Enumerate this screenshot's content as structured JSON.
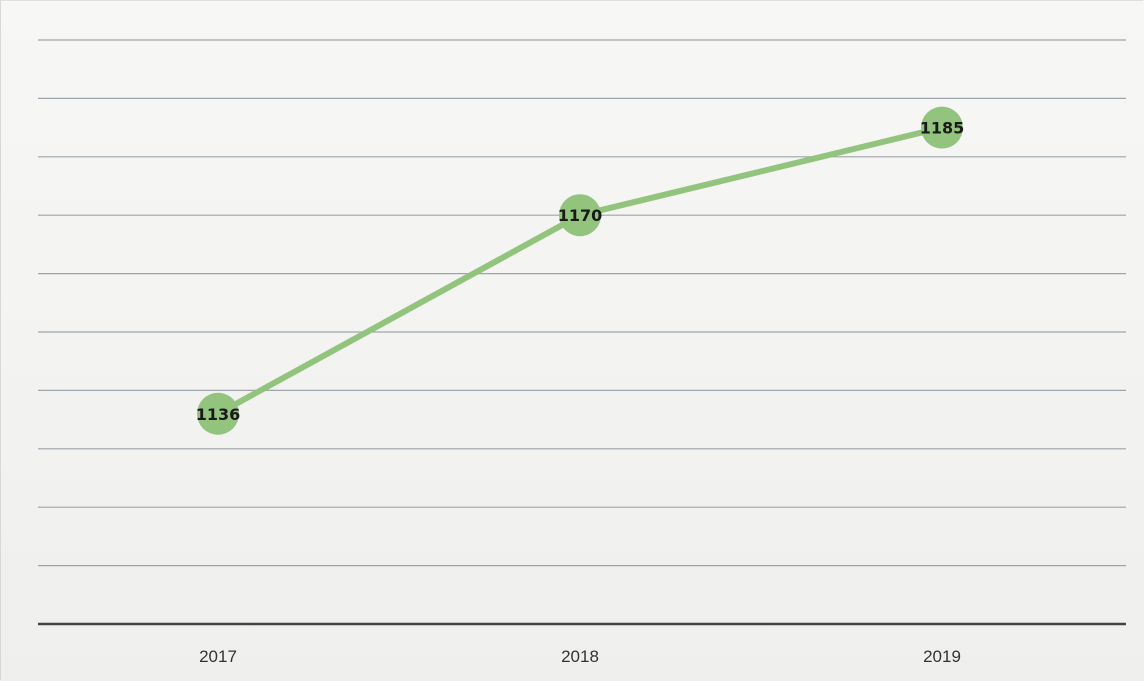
{
  "chart_data": {
    "type": "line",
    "categories": [
      "2017",
      "2018",
      "2019"
    ],
    "series": [
      {
        "values": [
          1136,
          1170,
          1185
        ],
        "data_labels": [
          "1136",
          "1170",
          "1185"
        ]
      }
    ],
    "ylim": [
      1100,
      1200
    ],
    "grid": true,
    "legend": "none",
    "colors": {
      "line": "#93c47d",
      "marker": "#93c47d",
      "grid": "#9da4ab",
      "axis": "#444444",
      "background": "#f4f4f2"
    }
  }
}
